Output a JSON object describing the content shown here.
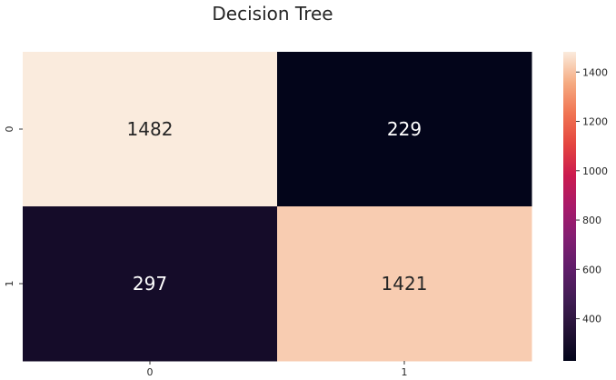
{
  "chart_data": {
    "type": "heatmap",
    "title": "Decision Tree",
    "x_categories": [
      "0",
      "1"
    ],
    "y_categories": [
      "0",
      "1"
    ],
    "values": [
      [
        1482,
        229
      ],
      [
        297,
        1421
      ]
    ],
    "cell_labels": [
      "1482",
      "229",
      "297",
      "1421"
    ],
    "colormap": "rocket",
    "colorbar": {
      "vmin": 229,
      "vmax": 1482,
      "ticks": [
        400,
        600,
        800,
        1000,
        1200,
        1400
      ],
      "tick_labels": [
        "400",
        "600",
        "800",
        "1000",
        "1200",
        "1400"
      ]
    },
    "xlabel": "",
    "ylabel": ""
  }
}
